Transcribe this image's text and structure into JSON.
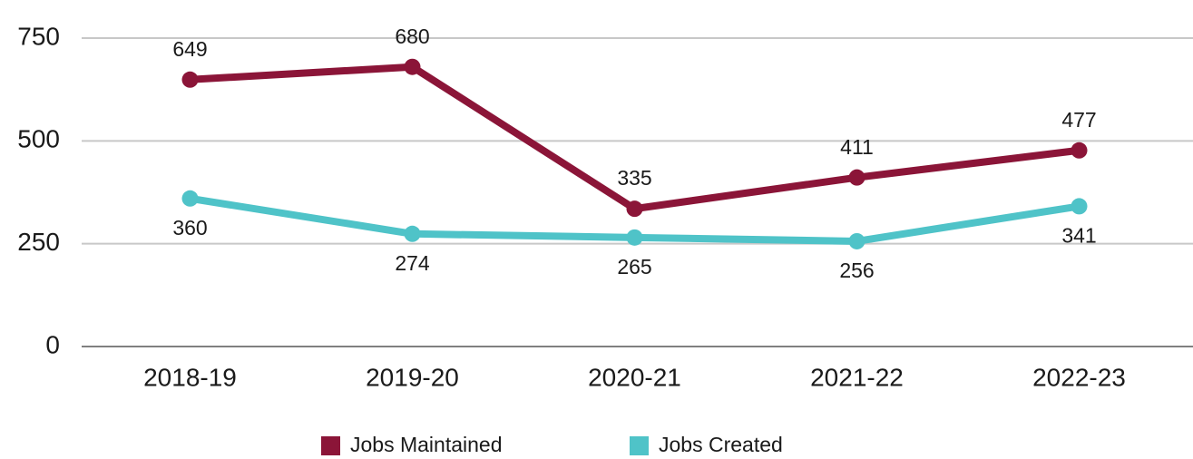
{
  "chart_data": {
    "type": "line",
    "categories": [
      "2018-19",
      "2019-20",
      "2020-21",
      "2021-22",
      "2022-23"
    ],
    "series": [
      {
        "name": "Jobs Maintained",
        "color": "#8b1538",
        "values": [
          649,
          680,
          335,
          411,
          477
        ]
      },
      {
        "name": "Jobs Created",
        "color": "#4fc3c8",
        "values": [
          360,
          274,
          265,
          256,
          341
        ]
      }
    ],
    "ylim": [
      0,
      750
    ],
    "yticks": [
      0,
      250,
      500,
      750
    ],
    "grid": true
  }
}
